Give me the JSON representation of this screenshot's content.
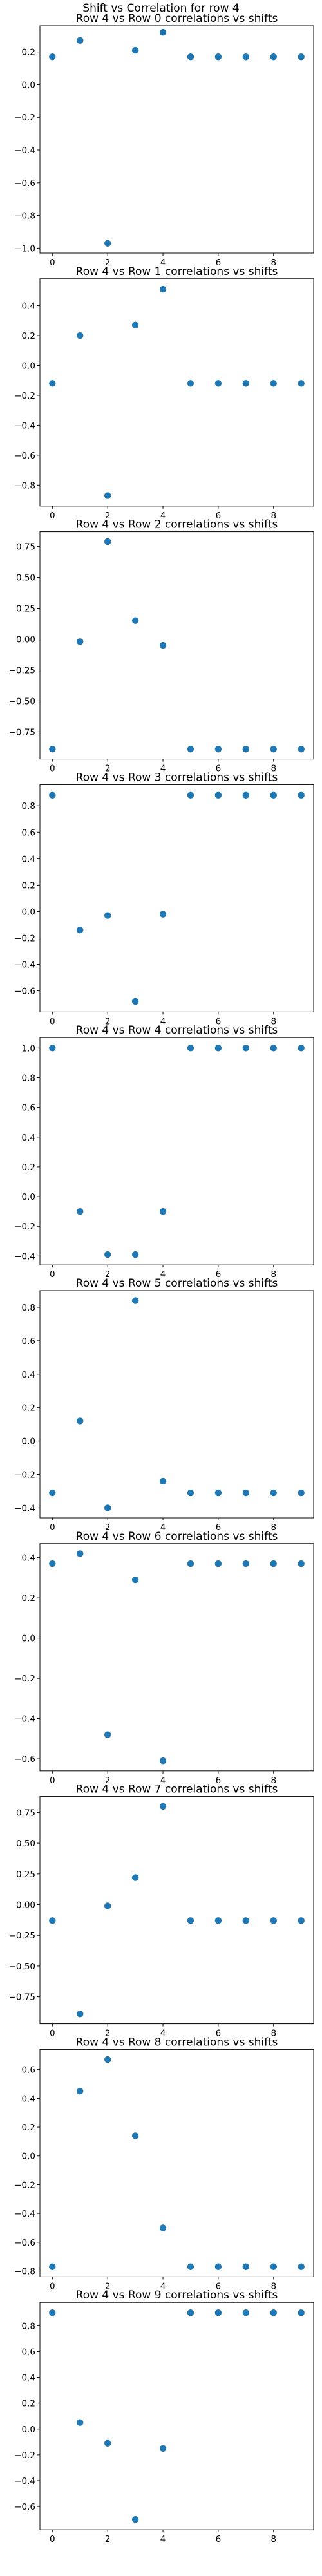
{
  "figure": {
    "title": "Shift vs Correlation for row 4"
  },
  "chart_data": [
    {
      "type": "scatter",
      "title": "Row 4 vs Row 0 correlations vs shifts",
      "xlabel": "",
      "ylabel": "",
      "x": [
        0,
        1,
        2,
        3,
        4,
        5,
        6,
        7,
        8,
        9
      ],
      "y": [
        0.17,
        0.27,
        -0.97,
        0.21,
        0.32,
        0.17,
        0.17,
        0.17,
        0.17,
        0.17
      ],
      "xticks": [
        "0",
        "2",
        "4",
        "6",
        "8"
      ],
      "yticks": [
        "0.2",
        "0.0",
        "−0.2",
        "−0.4",
        "−0.6",
        "−0.8",
        "−1.0"
      ],
      "ylim": [
        -1.03,
        0.36
      ],
      "xlim": [
        -0.45,
        9.45
      ],
      "color": "#1f77b4"
    },
    {
      "type": "scatter",
      "title": "Row 4 vs Row 1 correlations vs shifts",
      "xlabel": "",
      "ylabel": "",
      "x": [
        0,
        1,
        2,
        3,
        4,
        5,
        6,
        7,
        8,
        9
      ],
      "y": [
        -0.12,
        0.2,
        -0.87,
        0.27,
        0.51,
        -0.12,
        -0.12,
        -0.12,
        -0.12,
        -0.12
      ],
      "xticks": [
        "0",
        "2",
        "4",
        "6",
        "8"
      ],
      "yticks": [
        "0.4",
        "0.2",
        "0.0",
        "−0.2",
        "−0.4",
        "−0.6",
        "−0.8"
      ],
      "ylim": [
        -0.94,
        0.58
      ],
      "xlim": [
        -0.45,
        9.45
      ],
      "color": "#1f77b4"
    },
    {
      "type": "scatter",
      "title": "Row 4 vs Row 2 correlations vs shifts",
      "xlabel": "",
      "ylabel": "",
      "x": [
        0,
        1,
        2,
        3,
        4,
        5,
        6,
        7,
        8,
        9
      ],
      "y": [
        -0.89,
        -0.02,
        0.79,
        0.15,
        -0.05,
        -0.89,
        -0.89,
        -0.89,
        -0.89,
        -0.89
      ],
      "xticks": [
        "0",
        "2",
        "4",
        "6",
        "8"
      ],
      "yticks": [
        "0.75",
        "0.50",
        "0.25",
        "0.00",
        "−0.25",
        "−0.50",
        "−0.75"
      ],
      "ylim": [
        -0.97,
        0.87
      ],
      "xlim": [
        -0.45,
        9.45
      ],
      "color": "#1f77b4"
    },
    {
      "type": "scatter",
      "title": "Row 4 vs Row 3 correlations vs shifts",
      "xlabel": "",
      "ylabel": "",
      "x": [
        0,
        1,
        2,
        3,
        4,
        5,
        6,
        7,
        8,
        9
      ],
      "y": [
        0.88,
        -0.14,
        -0.03,
        -0.68,
        -0.02,
        0.88,
        0.88,
        0.88,
        0.88,
        0.88
      ],
      "xticks": [
        "0",
        "2",
        "4",
        "6",
        "8"
      ],
      "yticks": [
        "0.8",
        "0.6",
        "0.4",
        "0.2",
        "0.0",
        "−0.2",
        "−0.4",
        "−0.6"
      ],
      "ylim": [
        -0.76,
        0.96
      ],
      "xlim": [
        -0.45,
        9.45
      ],
      "color": "#1f77b4"
    },
    {
      "type": "scatter",
      "title": "Row 4 vs Row 4 correlations vs shifts",
      "xlabel": "",
      "ylabel": "",
      "x": [
        0,
        1,
        2,
        3,
        4,
        5,
        6,
        7,
        8,
        9
      ],
      "y": [
        1.0,
        -0.1,
        -0.39,
        -0.39,
        -0.1,
        1.0,
        1.0,
        1.0,
        1.0,
        1.0
      ],
      "xticks": [
        "0",
        "2",
        "4",
        "6",
        "8"
      ],
      "yticks": [
        "1.0",
        "0.8",
        "0.6",
        "0.4",
        "0.2",
        "0.0",
        "−0.2",
        "−0.4"
      ],
      "ylim": [
        -0.46,
        1.07
      ],
      "xlim": [
        -0.45,
        9.45
      ],
      "color": "#1f77b4"
    },
    {
      "type": "scatter",
      "title": "Row 4 vs Row 5 correlations vs shifts",
      "xlabel": "",
      "ylabel": "",
      "x": [
        0,
        1,
        2,
        3,
        4,
        5,
        6,
        7,
        8,
        9
      ],
      "y": [
        -0.31,
        0.12,
        -0.4,
        0.84,
        -0.24,
        -0.31,
        -0.31,
        -0.31,
        -0.31,
        -0.31
      ],
      "xticks": [
        "0",
        "2",
        "4",
        "6",
        "8"
      ],
      "yticks": [
        "0.8",
        "0.6",
        "0.4",
        "0.2",
        "0.0",
        "−0.2",
        "−0.4"
      ],
      "ylim": [
        -0.46,
        0.9
      ],
      "xlim": [
        -0.45,
        9.45
      ],
      "color": "#1f77b4"
    },
    {
      "type": "scatter",
      "title": "Row 4 vs Row 6 correlations vs shifts",
      "xlabel": "",
      "ylabel": "",
      "x": [
        0,
        1,
        2,
        3,
        4,
        5,
        6,
        7,
        8,
        9
      ],
      "y": [
        0.37,
        0.42,
        -0.48,
        0.29,
        -0.61,
        0.37,
        0.37,
        0.37,
        0.37,
        0.37
      ],
      "xticks": [
        "0",
        "2",
        "4",
        "6",
        "8"
      ],
      "yticks": [
        "0.4",
        "0.2",
        "0.0",
        "−0.2",
        "−0.4",
        "−0.6"
      ],
      "ylim": [
        -0.66,
        0.47
      ],
      "xlim": [
        -0.45,
        9.45
      ],
      "color": "#1f77b4"
    },
    {
      "type": "scatter",
      "title": "Row 4 vs Row 7 correlations vs shifts",
      "xlabel": "",
      "ylabel": "",
      "x": [
        0,
        1,
        2,
        3,
        4,
        5,
        6,
        7,
        8,
        9
      ],
      "y": [
        -0.13,
        -0.89,
        -0.01,
        0.22,
        0.8,
        -0.13,
        -0.13,
        -0.13,
        -0.13,
        -0.13
      ],
      "xticks": [
        "0",
        "2",
        "4",
        "6",
        "8"
      ],
      "yticks": [
        "0.75",
        "0.50",
        "0.25",
        "0.00",
        "−0.25",
        "−0.50",
        "−0.75"
      ],
      "ylim": [
        -0.97,
        0.88
      ],
      "xlim": [
        -0.45,
        9.45
      ],
      "color": "#1f77b4"
    },
    {
      "type": "scatter",
      "title": "Row 4 vs Row 8 correlations vs shifts",
      "xlabel": "",
      "ylabel": "",
      "x": [
        0,
        1,
        2,
        3,
        4,
        5,
        6,
        7,
        8,
        9
      ],
      "y": [
        -0.77,
        0.45,
        0.67,
        0.14,
        -0.5,
        -0.77,
        -0.77,
        -0.77,
        -0.77,
        -0.77
      ],
      "xticks": [
        "0",
        "2",
        "4",
        "6",
        "8"
      ],
      "yticks": [
        "0.6",
        "0.4",
        "0.2",
        "0.0",
        "−0.2",
        "−0.4",
        "−0.6",
        "−0.8"
      ],
      "ylim": [
        -0.84,
        0.74
      ],
      "xlim": [
        -0.45,
        9.45
      ],
      "color": "#1f77b4"
    },
    {
      "type": "scatter",
      "title": "Row 4 vs Row 9 correlations vs shifts",
      "xlabel": "",
      "ylabel": "",
      "x": [
        0,
        1,
        2,
        3,
        4,
        5,
        6,
        7,
        8,
        9
      ],
      "y": [
        0.9,
        0.05,
        -0.11,
        -0.7,
        -0.15,
        0.9,
        0.9,
        0.9,
        0.9,
        0.9
      ],
      "xticks": [
        "0",
        "2",
        "4",
        "6",
        "8"
      ],
      "yticks": [
        "0.8",
        "0.6",
        "0.4",
        "0.2",
        "0.0",
        "−0.2",
        "−0.4",
        "−0.6"
      ],
      "ylim": [
        -0.78,
        0.98
      ],
      "xlim": [
        -0.45,
        9.45
      ],
      "color": "#1f77b4"
    }
  ]
}
